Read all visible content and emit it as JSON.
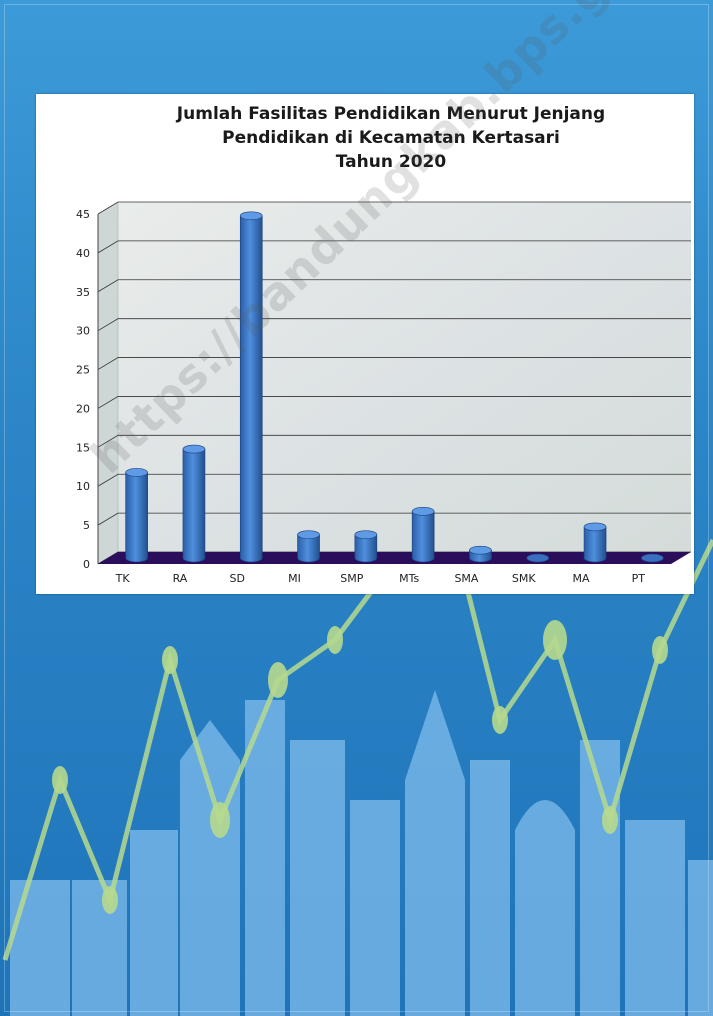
{
  "chart_data": {
    "type": "bar",
    "title": [
      "Jumlah Fasilitas Pendidikan Menurut Jenjang",
      "Pendidikan di Kecamatan Kertasari",
      "Tahun 2020"
    ],
    "categories": [
      "TK",
      "RA",
      "SD",
      "MI",
      "SMP",
      "MTs",
      "SMA",
      "SMK",
      "MA",
      "PT"
    ],
    "values": [
      11,
      14,
      44,
      3,
      3,
      6,
      1,
      0,
      4,
      0
    ],
    "ylim": [
      0,
      45
    ],
    "yticks": [
      0,
      5,
      10,
      15,
      20,
      25,
      30,
      35,
      40,
      45
    ],
    "style": "3d-cylinder",
    "grid": true,
    "bar_color": "#3a78c8",
    "floor_color": "#2a0e5c"
  },
  "watermark": "https://bandungkab.bps.go.id",
  "colors": {
    "background": "#2f86c9",
    "skyline": "#8cc6f0",
    "trend_line": "#b6d98e"
  }
}
